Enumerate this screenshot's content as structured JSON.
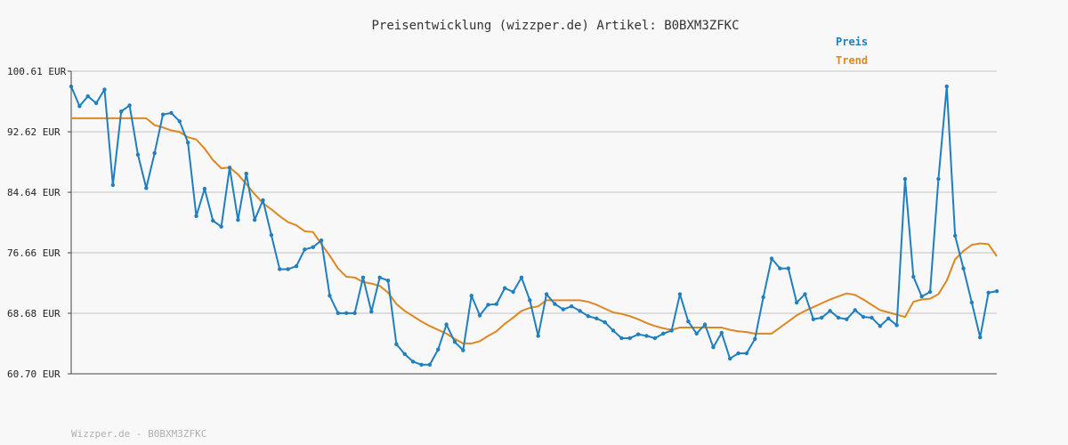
{
  "chart_data": {
    "type": "line",
    "title": "Preisentwicklung (wizzper.de) Artikel: B0BXM3ZFKC",
    "footer": "Wizzper.de - B0BXM3ZFKC",
    "ylim": [
      60.7,
      100.61
    ],
    "yticks": [
      "100.61 EUR",
      "92.62 EUR",
      "84.64 EUR",
      "76.66 EUR",
      "68.68 EUR",
      "60.70 EUR"
    ],
    "ytick_values": [
      100.61,
      92.62,
      84.64,
      76.66,
      68.68,
      60.7
    ],
    "grid": true,
    "legend_position": "top-right",
    "series": [
      {
        "name": "Preis",
        "color": "#1f7fbf",
        "values": [
          98.6,
          96.0,
          97.3,
          96.4,
          98.2,
          85.6,
          95.3,
          96.1,
          89.6,
          85.2,
          89.8,
          94.9,
          95.1,
          94.0,
          91.2,
          81.5,
          85.1,
          80.9,
          80.1,
          87.9,
          81.0,
          87.1,
          81.0,
          83.6,
          79.0,
          74.5,
          74.5,
          74.9,
          77.1,
          77.4,
          78.3,
          71.0,
          68.7,
          68.7,
          68.7,
          73.4,
          68.9,
          73.4,
          73.0,
          64.6,
          63.3,
          62.3,
          61.9,
          61.9,
          63.9,
          67.2,
          64.9,
          63.8,
          71.0,
          68.4,
          69.8,
          69.9,
          72.0,
          71.5,
          73.4,
          70.4,
          65.7,
          71.2,
          69.9,
          69.2,
          69.6,
          69.0,
          68.3,
          68.0,
          67.5,
          66.4,
          65.4,
          65.4,
          65.9,
          65.7,
          65.4,
          66.0,
          66.4,
          71.2,
          67.6,
          66.0,
          67.2,
          64.2,
          66.1,
          62.7,
          63.4,
          63.4,
          65.3,
          70.8,
          75.9,
          74.6,
          74.6,
          70.1,
          71.2,
          67.9,
          68.1,
          69.0,
          68.1,
          67.9,
          69.1,
          68.2,
          68.1,
          67.0,
          68.0,
          67.1,
          86.4,
          73.5,
          70.9,
          71.5,
          86.4,
          98.6,
          78.9,
          74.6,
          70.1,
          65.5,
          71.4,
          71.6
        ]
      },
      {
        "name": "Trend",
        "color": "#dd8822",
        "values": [
          94.4,
          94.4,
          94.4,
          94.4,
          94.4,
          94.4,
          94.4,
          94.4,
          94.4,
          94.4,
          93.5,
          93.2,
          92.8,
          92.6,
          91.9,
          91.6,
          90.4,
          88.9,
          87.8,
          87.9,
          87.0,
          85.7,
          84.4,
          83.2,
          82.4,
          81.5,
          80.7,
          80.3,
          79.5,
          79.4,
          77.8,
          76.3,
          74.6,
          73.5,
          73.4,
          72.8,
          72.6,
          72.3,
          71.4,
          69.9,
          69.0,
          68.3,
          67.6,
          67.0,
          66.5,
          66.0,
          65.3,
          64.7,
          64.7,
          65.0,
          65.7,
          66.3,
          67.3,
          68.1,
          69.0,
          69.4,
          69.6,
          70.4,
          70.4,
          70.4,
          70.4,
          70.4,
          70.2,
          69.8,
          69.3,
          68.8,
          68.6,
          68.3,
          67.9,
          67.4,
          67.0,
          66.7,
          66.5,
          66.8,
          66.8,
          66.8,
          66.8,
          66.8,
          66.8,
          66.5,
          66.3,
          66.2,
          66.0,
          66.0,
          66.0,
          66.8,
          67.6,
          68.4,
          69.0,
          69.5,
          70.0,
          70.5,
          70.9,
          71.3,
          71.1,
          70.5,
          69.8,
          69.1,
          68.8,
          68.5,
          68.2,
          70.2,
          70.5,
          70.6,
          71.2,
          73.0,
          75.8,
          76.9,
          77.7,
          77.9,
          77.8,
          76.2
        ]
      }
    ]
  }
}
